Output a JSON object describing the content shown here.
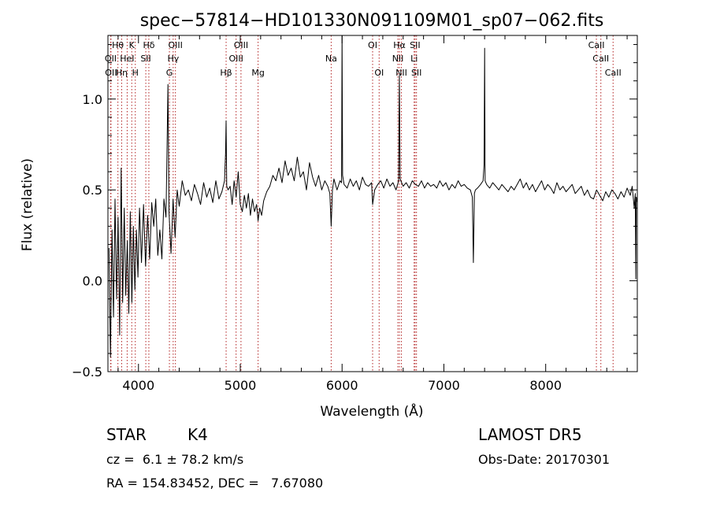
{
  "chart_data": {
    "type": "line",
    "title": "spec−57814−HD101330N091109M01_sp07−062.fits",
    "xlabel": "Wavelength (Å)",
    "ylabel": "Flux (relative)",
    "xlim": [
      3700,
      8900
    ],
    "ylim": [
      -0.5,
      1.35
    ],
    "xticks": [
      {
        "value": 4000,
        "label": "4000"
      },
      {
        "value": 5000,
        "label": "5000"
      },
      {
        "value": 6000,
        "label": "6000"
      },
      {
        "value": 7000,
        "label": "7000"
      },
      {
        "value": 8000,
        "label": "8000"
      }
    ],
    "yticks": [
      {
        "value": -0.5,
        "label": "−0.5"
      },
      {
        "value": 0.0,
        "label": "0.0"
      },
      {
        "value": 0.5,
        "label": "0.5"
      },
      {
        "value": 1.0,
        "label": "1.0"
      }
    ],
    "line_color": "#000000",
    "marker_color": "#b22222",
    "lines": [
      {
        "label": "OII",
        "x": 3727,
        "row": 1
      },
      {
        "label": "OII",
        "x": 3730,
        "row": 2
      },
      {
        "label": "Hθ",
        "x": 3798,
        "row": 0
      },
      {
        "label": "Hη",
        "x": 3835,
        "row": 2
      },
      {
        "label": "HeI",
        "x": 3889,
        "row": 1
      },
      {
        "label": "K",
        "x": 3934,
        "row": 0
      },
      {
        "label": "H",
        "x": 3969,
        "row": 2
      },
      {
        "label": "Hδ",
        "x": 4102,
        "row": 0
      },
      {
        "label": "SII",
        "x": 4072,
        "row": 1
      },
      {
        "label": "G",
        "x": 4304,
        "row": 2
      },
      {
        "label": "OIII",
        "x": 4363,
        "row": 0
      },
      {
        "label": "Hγ",
        "x": 4341,
        "row": 1
      },
      {
        "label": "Hβ",
        "x": 4861,
        "row": 2
      },
      {
        "label": "OIII",
        "x": 5007,
        "row": 0
      },
      {
        "label": "OIII",
        "x": 4959,
        "row": 1
      },
      {
        "label": "Mg",
        "x": 5175,
        "row": 2
      },
      {
        "label": "Na",
        "x": 5893,
        "row": 1
      },
      {
        "label": "OI",
        "x": 6300,
        "row": 0
      },
      {
        "label": "OI",
        "x": 6364,
        "row": 2
      },
      {
        "label": "Hα",
        "x": 6563,
        "row": 0
      },
      {
        "label": "NII",
        "x": 6548,
        "row": 1
      },
      {
        "label": "NII",
        "x": 6583,
        "row": 2
      },
      {
        "label": "SII",
        "x": 6717,
        "row": 0
      },
      {
        "label": "Li",
        "x": 6708,
        "row": 1
      },
      {
        "label": "SII",
        "x": 6731,
        "row": 2
      },
      {
        "label": "CaII",
        "x": 8498,
        "row": 0
      },
      {
        "label": "CaII",
        "x": 8542,
        "row": 1
      },
      {
        "label": "CaII",
        "x": 8662,
        "row": 2
      }
    ],
    "series": [
      {
        "x": [
          3710,
          3725,
          3740,
          3755,
          3770,
          3785,
          3800,
          3815,
          3830,
          3845,
          3860,
          3875,
          3890,
          3905,
          3920,
          3935,
          3950,
          3965,
          3980,
          3995,
          4010,
          4030,
          4050,
          4070,
          4090,
          4110,
          4130,
          4150,
          4170,
          4190,
          4210,
          4230,
          4250,
          4270,
          4280,
          4290,
          4300,
          4320,
          4340,
          4360,
          4380,
          4400,
          4430,
          4460,
          4490,
          4520,
          4550,
          4580,
          4610,
          4640,
          4670,
          4700,
          4730,
          4760,
          4790,
          4820,
          4845,
          4855,
          4861,
          4867,
          4880,
          4900,
          4920,
          4940,
          4960,
          4980,
          5000,
          5020,
          5040,
          5060,
          5080,
          5100,
          5120,
          5140,
          5160,
          5175,
          5190,
          5210,
          5230,
          5260,
          5290,
          5320,
          5350,
          5380,
          5410,
          5440,
          5470,
          5500,
          5530,
          5560,
          5590,
          5620,
          5650,
          5680,
          5710,
          5740,
          5770,
          5800,
          5830,
          5860,
          5880,
          5893,
          5905,
          5920,
          5950,
          5980,
          5995,
          6000,
          6005,
          6020,
          6050,
          6080,
          6110,
          6140,
          6170,
          6200,
          6230,
          6260,
          6290,
          6300,
          6320,
          6350,
          6380,
          6410,
          6440,
          6470,
          6500,
          6530,
          6555,
          6563,
          6570,
          6600,
          6630,
          6660,
          6690,
          6720,
          6750,
          6780,
          6810,
          6840,
          6870,
          6900,
          6930,
          6960,
          6990,
          7020,
          7050,
          7080,
          7110,
          7140,
          7170,
          7200,
          7230,
          7260,
          7280,
          7290,
          7300,
          7310,
          7330,
          7360,
          7385,
          7395,
          7400,
          7405,
          7420,
          7450,
          7480,
          7510,
          7540,
          7570,
          7600,
          7630,
          7660,
          7690,
          7720,
          7750,
          7780,
          7810,
          7840,
          7870,
          7900,
          7930,
          7960,
          7990,
          8020,
          8050,
          8080,
          8110,
          8140,
          8170,
          8200,
          8230,
          8260,
          8290,
          8320,
          8350,
          8380,
          8410,
          8440,
          8470,
          8500,
          8530,
          8560,
          8590,
          8620,
          8650,
          8680,
          8710,
          8740,
          8770,
          8800,
          8830,
          8850,
          8870,
          8880,
          8885,
          8890,
          8900
        ],
        "y": [
          0.18,
          -0.42,
          0.28,
          -0.2,
          0.45,
          -0.1,
          0.35,
          -0.3,
          0.62,
          -0.12,
          0.4,
          -0.08,
          0.22,
          -0.18,
          0.38,
          -0.12,
          0.3,
          -0.05,
          0.28,
          0.02,
          0.4,
          0.1,
          0.42,
          0.08,
          0.36,
          0.12,
          0.43,
          0.3,
          0.45,
          0.14,
          0.28,
          0.12,
          0.45,
          0.35,
          0.72,
          1.08,
          0.38,
          0.15,
          0.45,
          0.24,
          0.5,
          0.41,
          0.55,
          0.47,
          0.5,
          0.44,
          0.53,
          0.48,
          0.42,
          0.54,
          0.46,
          0.51,
          0.43,
          0.55,
          0.45,
          0.49,
          0.55,
          0.7,
          0.88,
          0.52,
          0.5,
          0.52,
          0.42,
          0.55,
          0.46,
          0.6,
          0.42,
          0.38,
          0.47,
          0.4,
          0.48,
          0.36,
          0.45,
          0.38,
          0.42,
          0.33,
          0.4,
          0.36,
          0.44,
          0.49,
          0.52,
          0.58,
          0.55,
          0.62,
          0.54,
          0.66,
          0.58,
          0.62,
          0.55,
          0.68,
          0.57,
          0.6,
          0.5,
          0.65,
          0.57,
          0.52,
          0.58,
          0.5,
          0.55,
          0.52,
          0.48,
          0.3,
          0.5,
          0.56,
          0.5,
          0.55,
          0.54,
          1.35,
          0.58,
          0.53,
          0.51,
          0.56,
          0.52,
          0.55,
          0.5,
          0.57,
          0.53,
          0.52,
          0.54,
          0.42,
          0.5,
          0.53,
          0.55,
          0.51,
          0.56,
          0.52,
          0.54,
          0.5,
          0.55,
          1.13,
          0.56,
          0.52,
          0.54,
          0.51,
          0.55,
          0.53,
          0.52,
          0.55,
          0.51,
          0.54,
          0.52,
          0.53,
          0.51,
          0.55,
          0.52,
          0.54,
          0.5,
          0.53,
          0.51,
          0.55,
          0.52,
          0.53,
          0.51,
          0.5,
          0.46,
          0.1,
          0.48,
          0.5,
          0.51,
          0.53,
          0.55,
          0.64,
          1.28,
          0.55,
          0.53,
          0.51,
          0.54,
          0.52,
          0.5,
          0.53,
          0.51,
          0.49,
          0.52,
          0.5,
          0.53,
          0.56,
          0.51,
          0.54,
          0.5,
          0.53,
          0.49,
          0.52,
          0.55,
          0.5,
          0.53,
          0.51,
          0.48,
          0.54,
          0.5,
          0.52,
          0.49,
          0.51,
          0.53,
          0.48,
          0.5,
          0.52,
          0.47,
          0.5,
          0.46,
          0.45,
          0.5,
          0.47,
          0.44,
          0.49,
          0.46,
          0.5,
          0.48,
          0.45,
          0.49,
          0.46,
          0.51,
          0.47,
          0.52,
          0.4,
          0.48,
          0.01,
          0.46,
          0.43
        ]
      }
    ]
  },
  "info": {
    "object_class": "STAR",
    "subclass": "K4",
    "redshift": "cz =  6.1 ± 78.2 km/s",
    "coords": "RA = 154.83452, DEC =   7.67080",
    "survey": "LAMOST DR5",
    "obs_date": "Obs-Date: 20170301"
  }
}
